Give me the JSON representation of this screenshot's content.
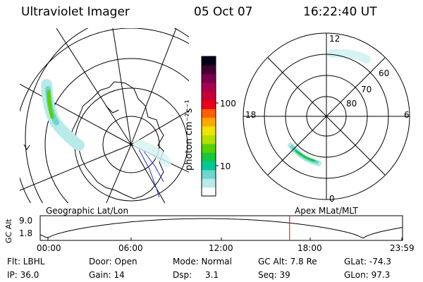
{
  "header": {
    "instrument": "Ultraviolet Imager",
    "date": "05 Oct 07",
    "time": "16:22:40 UT"
  },
  "left_panel": {
    "caption": "Geographic Lat/Lon"
  },
  "right_panel": {
    "caption": "Apex MLat/MLT",
    "mlt_labels": {
      "top": "12",
      "left": "18",
      "right": "6",
      "bottom": "0"
    },
    "lat_labels": [
      "60",
      "70",
      "80"
    ]
  },
  "colorbar": {
    "title": "photon cm⁻²s⁻¹",
    "ticks": [
      "100",
      "10"
    ],
    "scale": "log",
    "colors": [
      "#ffffff",
      "#b8eaea",
      "#6fd6cc",
      "#00c896",
      "#18c83c",
      "#5ad000",
      "#b4e000",
      "#f0e400",
      "#ffa800",
      "#ff6000",
      "#e8001c",
      "#c80036",
      "#a8004e",
      "#7a004e",
      "#420030",
      "#000018"
    ]
  },
  "altitude_plot": {
    "ylabel": "GC Alt",
    "yticks": [
      "9.0",
      "1.8"
    ],
    "xticks": [
      "00:00",
      "06:00",
      "12:00",
      "18:00",
      "23:59"
    ],
    "current_time_marker": "16:22:40",
    "marker_color": "#e00000"
  },
  "status": {
    "row1": {
      "filter": "Flt: LBHL",
      "door": "Door: Open",
      "mode": "Mode: Normal",
      "gc_alt": "GC Alt: 7.8 Re",
      "glat": "GLat: -74.3"
    },
    "row2": {
      "ip": "IP: 36.0",
      "gain": "Gain: 14",
      "dsp_label": "Dsp:",
      "dsp_value": "3.1",
      "seq": "Seq: 39",
      "glon": "GLon: 97.3"
    }
  }
}
